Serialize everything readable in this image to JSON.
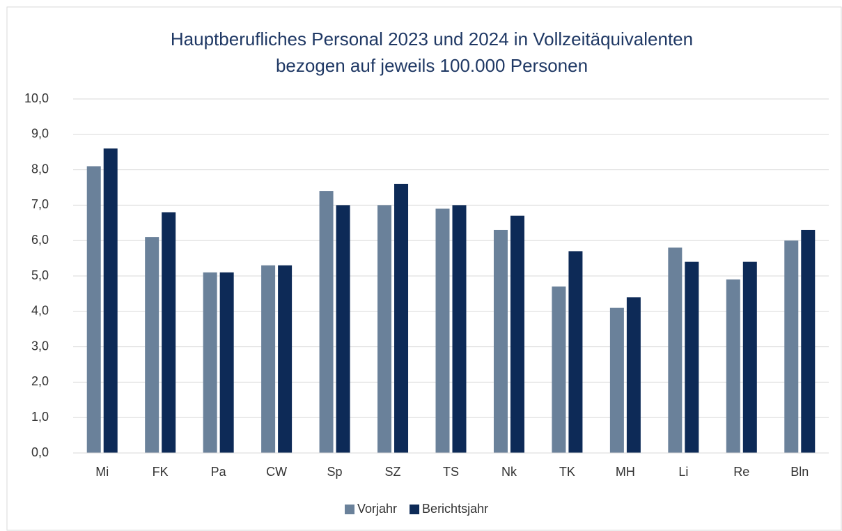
{
  "chart_data": {
    "type": "bar",
    "title": [
      "Hauptberufliches Personal 2023 und 2024 in Vollzeitäquivalenten",
      "bezogen auf jeweils 100.000 Personen"
    ],
    "categories": [
      "Mi",
      "FK",
      "Pa",
      "CW",
      "Sp",
      "SZ",
      "TS",
      "Nk",
      "TK",
      "MH",
      "Li",
      "Re",
      "Bln"
    ],
    "series": [
      {
        "name": "Vorjahr",
        "color": "#6a819a",
        "values": [
          8.1,
          6.1,
          5.1,
          5.3,
          7.4,
          7.0,
          6.9,
          6.3,
          4.7,
          4.1,
          5.8,
          4.9,
          6.0
        ]
      },
      {
        "name": "Berichtsjahr",
        "color": "#0d2a57",
        "values": [
          8.6,
          6.8,
          5.1,
          5.3,
          7.0,
          7.6,
          7.0,
          6.7,
          5.7,
          4.4,
          5.4,
          5.4,
          6.3
        ]
      }
    ],
    "ylim": [
      0,
      10
    ],
    "yticks": [
      {
        "value": 0,
        "label": "0,0"
      },
      {
        "value": 1,
        "label": "1,0"
      },
      {
        "value": 2,
        "label": "2,0"
      },
      {
        "value": 3,
        "label": "3,0"
      },
      {
        "value": 4,
        "label": "4,0"
      },
      {
        "value": 5,
        "label": "5,0"
      },
      {
        "value": 6,
        "label": "6,0"
      },
      {
        "value": 7,
        "label": "7,0"
      },
      {
        "value": 8,
        "label": "8,0"
      },
      {
        "value": 9,
        "label": "9,0"
      },
      {
        "value": 10,
        "label": "10,0"
      }
    ],
    "grid": true,
    "legend": "bottom"
  }
}
